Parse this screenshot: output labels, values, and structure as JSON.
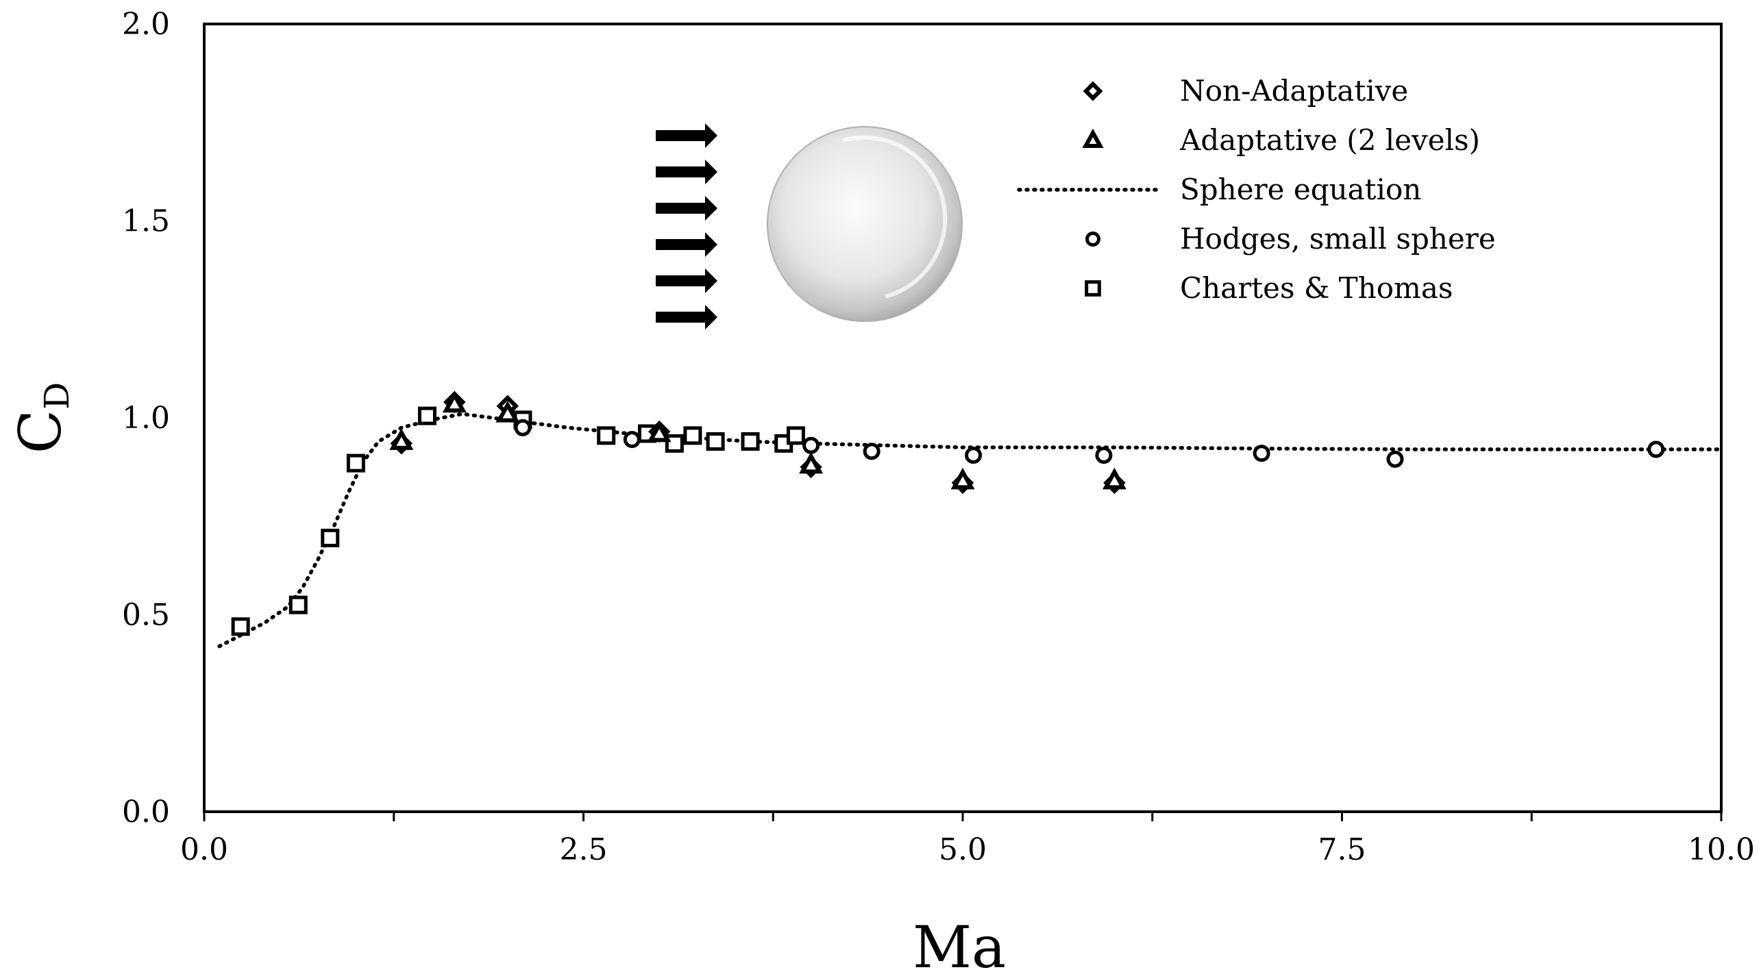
{
  "chart_data": {
    "type": "scatter",
    "title": "",
    "xlabel": "Ma",
    "ylabel": {
      "main": "C",
      "sub": "D"
    },
    "xlim": [
      0,
      10
    ],
    "ylim": [
      0,
      2
    ],
    "xticks": [
      0,
      2.5,
      5,
      7.5,
      10
    ],
    "xtick_labels": [
      "0.0",
      "2.5",
      "5.0",
      "7.5",
      "10.0"
    ],
    "xticks_minor": [
      1.25,
      3.75,
      6.25,
      8.75
    ],
    "yticks": [
      0,
      0.5,
      1,
      1.5,
      2
    ],
    "ytick_labels": [
      "0.0",
      "0.5",
      "1.0",
      "1.5",
      "2.0"
    ],
    "grid": false,
    "legend_position": "top-right",
    "series": [
      {
        "name": "Non-Adaptative",
        "marker": "diamond",
        "points": [
          [
            1.3,
            0.935
          ],
          [
            1.65,
            1.04
          ],
          [
            2.0,
            1.03
          ],
          [
            3.0,
            0.965
          ],
          [
            4.0,
            0.875
          ],
          [
            5.0,
            0.835
          ],
          [
            6.0,
            0.835
          ]
        ]
      },
      {
        "name": "Adaptative (2 levels)",
        "marker": "triangle",
        "points": [
          [
            1.3,
            0.94
          ],
          [
            1.65,
            1.035
          ],
          [
            2.0,
            1.01
          ],
          [
            3.0,
            0.96
          ],
          [
            4.0,
            0.88
          ],
          [
            5.0,
            0.84
          ],
          [
            6.0,
            0.84
          ]
        ]
      },
      {
        "name": "Sphere equation",
        "marker": "dotted-line",
        "points": [
          [
            0.1,
            0.42
          ],
          [
            0.25,
            0.45
          ],
          [
            0.4,
            0.48
          ],
          [
            0.55,
            0.52
          ],
          [
            0.65,
            0.57
          ],
          [
            0.75,
            0.64
          ],
          [
            0.85,
            0.72
          ],
          [
            0.95,
            0.81
          ],
          [
            1.05,
            0.89
          ],
          [
            1.15,
            0.94
          ],
          [
            1.3,
            0.975
          ],
          [
            1.5,
            0.995
          ],
          [
            1.7,
            1.01
          ],
          [
            1.9,
            1.0
          ],
          [
            2.1,
            0.99
          ],
          [
            2.4,
            0.975
          ],
          [
            2.8,
            0.96
          ],
          [
            3.2,
            0.95
          ],
          [
            3.6,
            0.94
          ],
          [
            4.0,
            0.935
          ],
          [
            4.5,
            0.93
          ],
          [
            5.0,
            0.925
          ],
          [
            6.0,
            0.925
          ],
          [
            7.0,
            0.922
          ],
          [
            8.0,
            0.92
          ],
          [
            9.0,
            0.92
          ],
          [
            10.0,
            0.92
          ]
        ]
      },
      {
        "name": "Hodges, small sphere",
        "marker": "circle",
        "points": [
          [
            2.1,
            0.975
          ],
          [
            2.82,
            0.945
          ],
          [
            4.0,
            0.93
          ],
          [
            4.4,
            0.915
          ],
          [
            5.07,
            0.905
          ],
          [
            5.93,
            0.905
          ],
          [
            6.97,
            0.91
          ],
          [
            7.85,
            0.895
          ],
          [
            9.57,
            0.92
          ]
        ]
      },
      {
        "name": "Chartes & Thomas",
        "marker": "square",
        "points": [
          [
            0.24,
            0.47
          ],
          [
            0.62,
            0.525
          ],
          [
            0.83,
            0.695
          ],
          [
            1.0,
            0.885
          ],
          [
            1.47,
            1.005
          ],
          [
            2.1,
            0.995
          ],
          [
            2.65,
            0.955
          ],
          [
            2.92,
            0.96
          ],
          [
            3.1,
            0.935
          ],
          [
            3.22,
            0.955
          ],
          [
            3.37,
            0.94
          ],
          [
            3.6,
            0.94
          ],
          [
            3.82,
            0.935
          ],
          [
            3.9,
            0.955
          ]
        ]
      }
    ]
  }
}
